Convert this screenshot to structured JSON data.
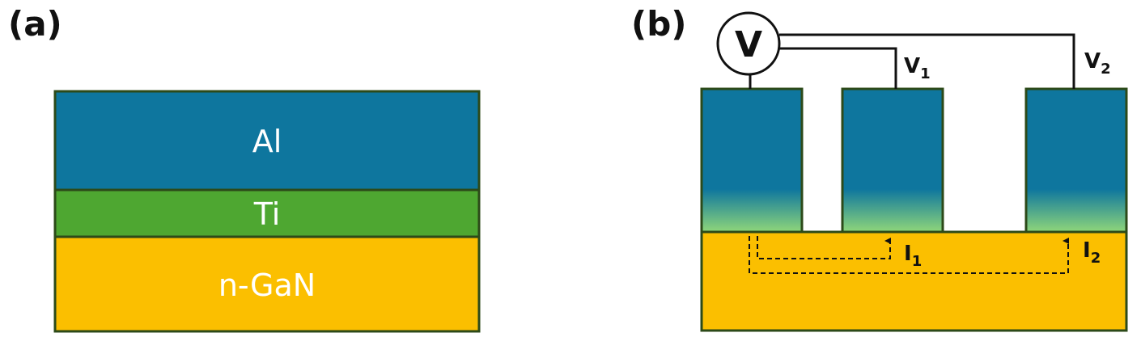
{
  "panel_a": {
    "label": "(a)",
    "layers": [
      {
        "name": "Al",
        "color": "#0e769e"
      },
      {
        "name": "Ti",
        "color": "#4ea731"
      },
      {
        "name": "n-GaN",
        "color": "#fbbf00"
      }
    ],
    "border_color": "#2c4a19"
  },
  "panel_b": {
    "label": "(b)",
    "meter_symbol": "V",
    "voltage_1": {
      "base": "V",
      "sub": "1"
    },
    "voltage_2": {
      "base": "V",
      "sub": "2"
    },
    "current_1": {
      "base": "I",
      "sub": "1"
    },
    "current_2": {
      "base": "I",
      "sub": "2"
    },
    "contact_top_color": "#0e769e",
    "contact_bottom_color": "#8fd67a",
    "substrate_color": "#fbbf00"
  }
}
